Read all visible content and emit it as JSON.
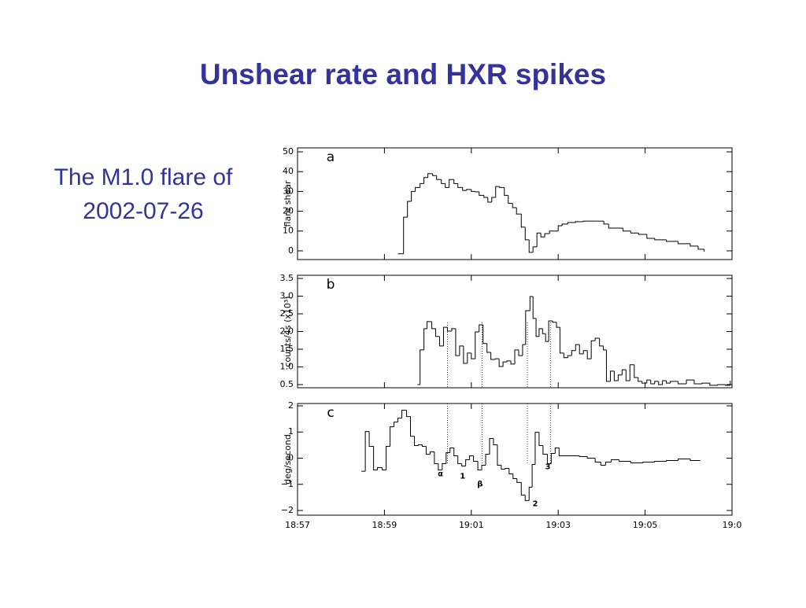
{
  "title": "Unshear rate and HXR spikes",
  "caption": [
    "The M1.0 flare of",
    "2002-07-26"
  ],
  "chart_data": [
    {
      "type": "line",
      "panel_label": "a",
      "ylabel": "flare shear",
      "xlim": [
        57,
        67
      ],
      "ylim": [
        -4.4,
        52
      ],
      "yticks": [
        0,
        10,
        20,
        30,
        40,
        50
      ],
      "x": [
        59.31,
        59.44,
        59.53,
        59.62,
        59.71,
        59.82,
        59.91,
        60.0,
        60.11,
        60.2,
        60.31,
        60.4,
        60.49,
        60.6,
        60.69,
        60.8,
        60.89,
        61.0,
        61.09,
        61.18,
        61.29,
        61.38,
        61.47,
        61.56,
        61.65,
        61.76,
        61.85,
        61.95,
        62.04,
        62.15,
        62.24,
        62.33,
        62.42,
        62.51,
        62.6,
        62.69,
        62.8,
        62.89,
        63.0,
        63.09,
        63.22,
        63.4,
        63.58,
        63.87,
        64.05,
        64.16,
        64.49,
        64.67,
        64.85,
        65.04,
        65.22,
        65.49,
        65.76,
        66.04,
        66.22,
        66.36
      ],
      "series": [
        {
          "color": "#000000",
          "values": [
            -1.5,
            17,
            25,
            30,
            32,
            34,
            37,
            39,
            38,
            36,
            34,
            32,
            36,
            34,
            32,
            30.5,
            31,
            30,
            29.8,
            28,
            27,
            24.6,
            27,
            32.5,
            32,
            28,
            24,
            21.8,
            18.6,
            12,
            5.6,
            -0.8,
            2,
            9,
            7,
            8.7,
            10,
            10,
            12.7,
            13.5,
            14.3,
            14.7,
            15,
            15,
            13.5,
            11.5,
            10,
            9,
            8.3,
            6.3,
            5.6,
            4.8,
            3.6,
            2.4,
            0.8,
            -0.4
          ]
        }
      ]
    },
    {
      "type": "line",
      "panel_label": "b",
      "ylabel": "counts/4s (x10³)",
      "xlim": [
        57,
        67
      ],
      "ylim": [
        0.41,
        3.59
      ],
      "yticks": [
        0.5,
        {
          "value": 1,
          "label": "1.0"
        },
        1.5,
        {
          "value": 2,
          "label": "2.0"
        },
        2.5,
        {
          "value": 3,
          "label": "3.0"
        },
        3.5
      ],
      "x": [
        59.76,
        59.82,
        59.91,
        59.98,
        60.09,
        60.18,
        60.27,
        60.36,
        60.45,
        60.55,
        60.64,
        60.73,
        60.82,
        60.91,
        61.0,
        61.09,
        61.18,
        61.27,
        61.36,
        61.45,
        61.55,
        61.64,
        61.73,
        61.82,
        61.91,
        62.0,
        62.09,
        62.18,
        62.25,
        62.35,
        62.42,
        62.49,
        62.56,
        62.64,
        62.71,
        62.78,
        62.87,
        62.96,
        63.04,
        63.13,
        63.22,
        63.31,
        63.4,
        63.49,
        63.58,
        63.67,
        63.76,
        63.85,
        63.95,
        64.04,
        64.11,
        64.2,
        64.29,
        64.38,
        64.47,
        64.56,
        64.65,
        64.75,
        64.84,
        64.93,
        65.04,
        65.13,
        65.22,
        65.31,
        65.4,
        65.49,
        65.58,
        65.76,
        65.95,
        66.13,
        66.31,
        66.49,
        66.67,
        66.85,
        66.96
      ],
      "series": [
        {
          "color": "#000000",
          "values": [
            0.5,
            1.48,
            2.08,
            2.28,
            2.08,
            1.86,
            1.59,
            2.12,
            2.01,
            2.08,
            1.32,
            1.59,
            1.1,
            1.39,
            1.23,
            1.99,
            2.19,
            1.66,
            1.41,
            1.21,
            1.23,
            1.01,
            1.14,
            1.17,
            1.08,
            1.48,
            1.32,
            1.63,
            2.59,
            2.99,
            2.37,
            1.86,
            2.08,
            1.94,
            1.72,
            2.3,
            2.26,
            2.12,
            1.39,
            1.26,
            1.32,
            1.46,
            1.63,
            1.37,
            1.46,
            1.23,
            1.74,
            1.81,
            1.59,
            1.48,
            0.59,
            0.88,
            0.61,
            0.77,
            0.92,
            0.61,
            1.06,
            0.7,
            0.59,
            0.54,
            0.63,
            0.52,
            0.59,
            0.5,
            0.61,
            0.54,
            0.59,
            0.52,
            0.63,
            0.52,
            0.54,
            0.48,
            0.5,
            0.48,
            0.61
          ]
        }
      ]
    },
    {
      "type": "line",
      "panel_label": "c",
      "ylabel": "deg/second",
      "xlim": [
        57,
        67
      ],
      "ylim": [
        -2.18,
        2.09
      ],
      "xticks": [
        {
          "value": 57,
          "label": "18:57"
        },
        {
          "value": 59,
          "label": "18:59"
        },
        {
          "value": 61,
          "label": "19:01"
        },
        {
          "value": 63,
          "label": "19:03"
        },
        {
          "value": 65,
          "label": "19:05"
        },
        {
          "value": 67,
          "label": "19:0"
        }
      ],
      "yticks": [
        {
          "value": -2,
          "label": "−2"
        },
        {
          "value": -1,
          "label": "−1"
        },
        0,
        1,
        2
      ],
      "markers": [
        60.45,
        61.25,
        62.29,
        62.82
      ],
      "annotations": [
        {
          "text": "α",
          "x": 60.29,
          "y": -0.6
        },
        {
          "text": "1",
          "x": 60.8,
          "y": -0.69
        },
        {
          "text": "β",
          "x": 61.2,
          "y": -0.99
        },
        {
          "text": "2",
          "x": 62.47,
          "y": -1.74
        },
        {
          "text": "3",
          "x": 62.76,
          "y": -0.33
        }
      ],
      "x": [
        58.47,
        58.56,
        58.65,
        58.75,
        58.84,
        58.95,
        59.04,
        59.13,
        59.22,
        59.31,
        59.4,
        59.51,
        59.6,
        59.69,
        59.78,
        59.87,
        59.96,
        60.05,
        60.15,
        60.24,
        60.33,
        60.42,
        60.51,
        60.6,
        60.69,
        60.78,
        60.87,
        60.96,
        61.05,
        61.15,
        61.24,
        61.33,
        61.42,
        61.51,
        61.6,
        61.69,
        61.78,
        61.87,
        61.96,
        62.05,
        62.15,
        62.24,
        62.33,
        62.4,
        62.47,
        62.56,
        62.65,
        62.75,
        62.84,
        62.93,
        63.02,
        63.22,
        63.49,
        63.67,
        63.85,
        63.98,
        64.09,
        64.22,
        64.4,
        64.67,
        64.95,
        65.22,
        65.49,
        65.76,
        66.04,
        66.27
      ],
      "series": [
        {
          "color": "#000000",
          "values": [
            -0.5,
            1.02,
            0.45,
            -0.45,
            -0.36,
            -0.45,
            0.45,
            1.2,
            1.38,
            1.53,
            1.83,
            1.59,
            0.84,
            0.48,
            0.51,
            0.45,
            0.15,
            0.24,
            -0.21,
            -0.45,
            -0.21,
            0.21,
            0.39,
            0.09,
            -0.21,
            -0.3,
            -0.06,
            0.09,
            -0.12,
            -0.45,
            -0.27,
            0.15,
            0.75,
            0.51,
            -0.27,
            -0.42,
            -0.39,
            -0.6,
            -0.78,
            -0.93,
            -1.41,
            -1.62,
            -1.11,
            -0.24,
            0.99,
            0.48,
            0.15,
            -0.21,
            0.18,
            0.39,
            0.09,
            0.09,
            0.06,
            0,
            -0.15,
            -0.27,
            -0.15,
            -0.06,
            -0.12,
            -0.18,
            -0.15,
            -0.12,
            -0.09,
            -0.03,
            -0.09,
            -0.09
          ]
        }
      ]
    }
  ]
}
